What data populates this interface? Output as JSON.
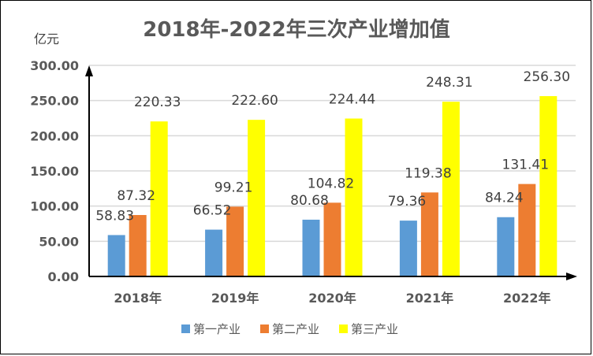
{
  "chart_data": {
    "type": "bar",
    "title": "2018年-2022年三次产业增加值",
    "ylabel": "亿元",
    "xlabel": "",
    "ylim": [
      0,
      300
    ],
    "yticks": [
      "0.00",
      "50.00",
      "100.00",
      "150.00",
      "200.00",
      "250.00",
      "300.00"
    ],
    "categories": [
      "2018年",
      "2019年",
      "2020年",
      "2021年",
      "2022年"
    ],
    "series": [
      {
        "name": "第一产业",
        "color": "#5B9BD5",
        "values": [
          58.83,
          66.52,
          80.68,
          79.36,
          84.24
        ],
        "labels": [
          "58.83",
          "66.52",
          "80.68",
          "79.36",
          "84.24"
        ]
      },
      {
        "name": "第二产业",
        "color": "#ED7D31",
        "values": [
          87.32,
          99.21,
          104.82,
          119.38,
          131.41
        ],
        "labels": [
          "87.32",
          "99.21",
          "104.82",
          "119.38",
          "131.41"
        ]
      },
      {
        "name": "第三产业",
        "color": "#FFFF00",
        "values": [
          220.33,
          222.6,
          224.44,
          248.31,
          256.3
        ],
        "labels": [
          "220.33",
          "222.60",
          "224.44",
          "248.31",
          "256.30"
        ]
      }
    ],
    "grid": true,
    "legend_position": "bottom"
  }
}
